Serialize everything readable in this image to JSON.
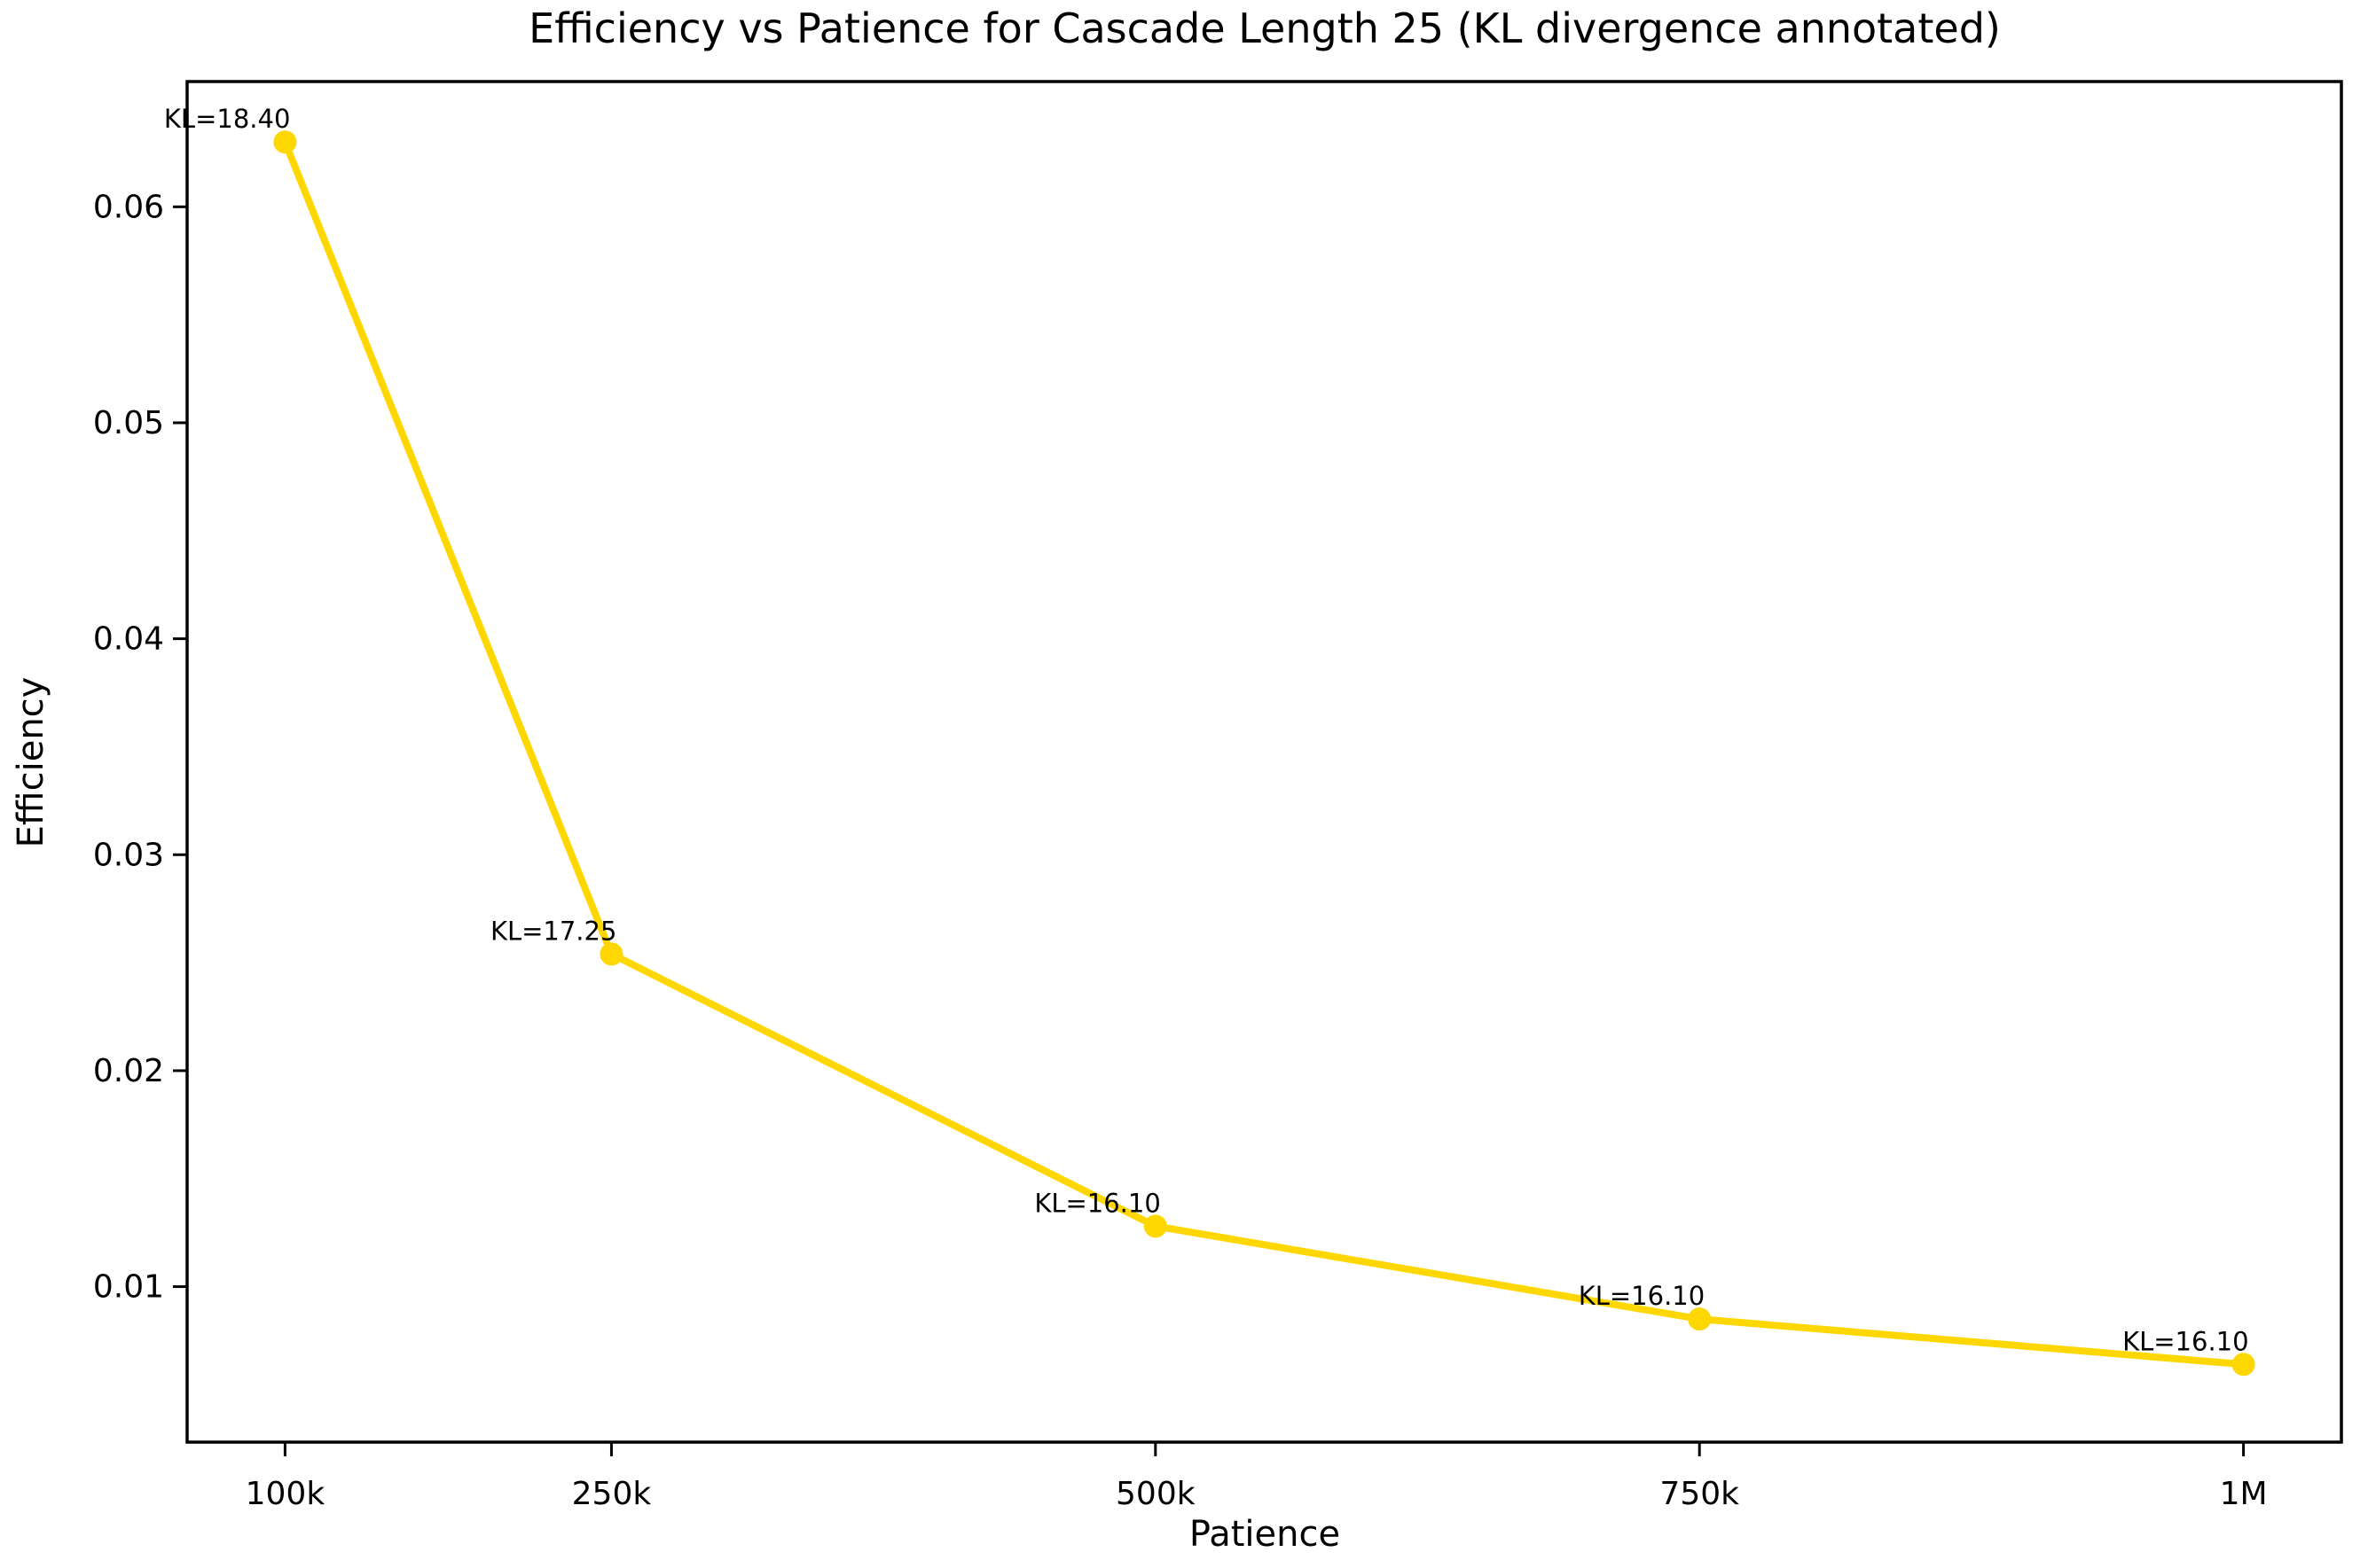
{
  "figure": {
    "background": "#FFFFFF",
    "spine_color": "#000000"
  },
  "chart_data": {
    "type": "line",
    "title": "Efficiency vs Patience for Cascade Length 25 (KL divergence annotated)",
    "xlabel": "Patience",
    "ylabel": "Efficiency",
    "grid": false,
    "legend": false,
    "xlim": [
      55000,
      1045000
    ],
    "ylim": [
      0.0028,
      0.0658
    ],
    "x_ticks": [
      100000,
      250000,
      500000,
      750000,
      1000000
    ],
    "x_tick_labels": [
      "100k",
      "250k",
      "500k",
      "750k",
      "1M"
    ],
    "y_ticks": [
      0.01,
      0.02,
      0.03,
      0.04,
      0.05,
      0.06
    ],
    "y_tick_labels": [
      "0.01",
      "0.02",
      "0.03",
      "0.04",
      "0.05",
      "0.06"
    ],
    "series": [
      {
        "name": "efficiency-curve",
        "color": "#FFD700",
        "marker": "circle",
        "x": [
          100000,
          250000,
          500000,
          750000,
          1000000
        ],
        "y": [
          0.063,
          0.0254,
          0.0128,
          0.0085,
          0.0064
        ]
      }
    ],
    "annotation_color": "#FF0000",
    "annotations": [
      {
        "label": "KL=18.40",
        "kl": 18.4,
        "x": 100000,
        "y": 0.063
      },
      {
        "label": "KL=17.25",
        "kl": 17.25,
        "x": 250000,
        "y": 0.0254
      },
      {
        "label": "KL=16.10",
        "kl": 16.1,
        "x": 500000,
        "y": 0.0128
      },
      {
        "label": "KL=16.10",
        "kl": 16.1,
        "x": 750000,
        "y": 0.0085
      },
      {
        "label": "KL=16.10",
        "kl": 16.1,
        "x": 1000000,
        "y": 0.0064
      }
    ]
  }
}
